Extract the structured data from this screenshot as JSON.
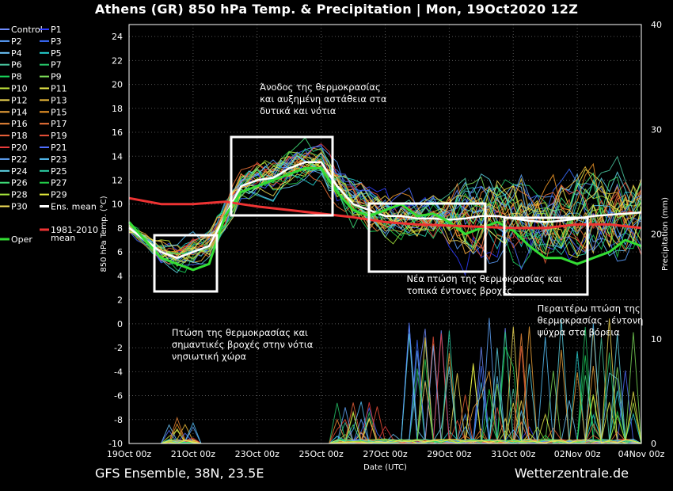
{
  "title": "Athens  (GR)  850 hPa Temp. & Precipitation | Mon, 19Oct2020 12Z",
  "footer_left": "GFS Ensemble, 38N, 23.5E",
  "footer_right": "Wetterzentrale.de",
  "chart_data": {
    "type": "line",
    "xlabel": "Date (UTC)",
    "ylabel": "850 hPa Temp. (°C)",
    "y2label": "Precipitation (mm)",
    "xlim": [
      0,
      384
    ],
    "ylim": [
      -10,
      25
    ],
    "y2lim": [
      0,
      40
    ],
    "x_tick_labels": [
      "19Oct 00z",
      "21Oct 00z",
      "23Oct 00z",
      "25Oct 00z",
      "27Oct 00z",
      "29Oct 00z",
      "31Oct 00z",
      "02Nov 00z",
      "04Nov 00z"
    ],
    "x_tick_hours": [
      0,
      48,
      96,
      144,
      192,
      240,
      288,
      336,
      384
    ],
    "y_ticks": [
      -10,
      -8,
      -6,
      -4,
      -2,
      0,
      2,
      4,
      6,
      8,
      10,
      12,
      14,
      16,
      18,
      20,
      22,
      24
    ],
    "y2_ticks": [
      0,
      10,
      20,
      30,
      40
    ],
    "grid": true,
    "legend": {
      "placement": "left-outside",
      "entries": [
        {
          "name": "Control",
          "color": "#6f8cff"
        },
        {
          "name": "P1",
          "color": "#2f3cff"
        },
        {
          "name": "P2",
          "color": "#5aa0ff"
        },
        {
          "name": "P3",
          "color": "#3a6cff"
        },
        {
          "name": "P4",
          "color": "#6ec8ff"
        },
        {
          "name": "P5",
          "color": "#25d2d2"
        },
        {
          "name": "P6",
          "color": "#49c7a0"
        },
        {
          "name": "P7",
          "color": "#26c86a"
        },
        {
          "name": "P8",
          "color": "#19d65a"
        },
        {
          "name": "P9",
          "color": "#7ee05a"
        },
        {
          "name": "P10",
          "color": "#c8ec3c"
        },
        {
          "name": "P11",
          "color": "#f0f04a"
        },
        {
          "name": "P12",
          "color": "#f6dd55"
        },
        {
          "name": "P13",
          "color": "#f3c03c"
        },
        {
          "name": "P14",
          "color": "#f4a83c"
        },
        {
          "name": "P15",
          "color": "#f59a28"
        },
        {
          "name": "P16",
          "color": "#f08a3a"
        },
        {
          "name": "P17",
          "color": "#f2753a"
        },
        {
          "name": "P18",
          "color": "#ef623a"
        },
        {
          "name": "P19",
          "color": "#ec5038"
        },
        {
          "name": "P20",
          "color": "#e83b3b"
        },
        {
          "name": "P21",
          "color": "#4f6eff"
        },
        {
          "name": "P22",
          "color": "#62a8ff"
        },
        {
          "name": "P23",
          "color": "#58c6ff"
        },
        {
          "name": "P24",
          "color": "#5fd7e8"
        },
        {
          "name": "P25",
          "color": "#2ed2a8"
        },
        {
          "name": "P26",
          "color": "#3fe07a"
        },
        {
          "name": "P27",
          "color": "#22d24a"
        },
        {
          "name": "P28",
          "color": "#a6e63c"
        },
        {
          "name": "P29",
          "color": "#e3ea3c"
        },
        {
          "name": "P30",
          "color": "#f7e35a"
        },
        {
          "name": "Ens. mean",
          "color": "#ffffff"
        },
        {
          "name": "Oper",
          "color": "#33dd33"
        },
        {
          "name": "1981-2010\nmean",
          "color": "#ee3333"
        }
      ]
    },
    "series": [
      {
        "name": "Ens. mean",
        "hours": [
          0,
          12,
          24,
          36,
          48,
          60,
          72,
          84,
          96,
          108,
          120,
          132,
          144,
          156,
          168,
          180,
          192,
          204,
          216,
          228,
          240,
          252,
          264,
          276,
          288,
          300,
          312,
          324,
          336,
          348,
          360,
          372,
          384
        ],
        "values": [
          8,
          7,
          6,
          5.5,
          6,
          6.5,
          9,
          11.5,
          12,
          12.2,
          13,
          13.5,
          13.5,
          11.5,
          10,
          9.5,
          9,
          9,
          8.8,
          8.8,
          8.7,
          8.8,
          9,
          9,
          8.8,
          8.6,
          8.5,
          8.6,
          8.8,
          9,
          9.1,
          9.2,
          9.3
        ]
      },
      {
        "name": "Oper",
        "hours": [
          0,
          12,
          24,
          36,
          48,
          60,
          72,
          84,
          96,
          108,
          120,
          132,
          144,
          156,
          168,
          180,
          192,
          204,
          216,
          228,
          240,
          252,
          264,
          276,
          288,
          300,
          312,
          324,
          336,
          348,
          360,
          372,
          384
        ],
        "values": [
          8.5,
          7,
          5.5,
          5,
          4.5,
          5,
          9,
          11,
          11.5,
          12,
          12.5,
          13,
          13,
          11,
          9.5,
          9,
          9.5,
          10,
          9,
          9.2,
          8.5,
          7.5,
          8,
          8.5,
          7.8,
          6.5,
          5.5,
          5.5,
          5,
          5.5,
          6,
          7,
          6.5
        ]
      },
      {
        "name": "1981-2010\nmean",
        "hours": [
          0,
          24,
          48,
          72,
          96,
          120,
          144,
          168,
          192,
          216,
          240,
          264,
          288,
          312,
          336,
          360,
          384
        ],
        "values": [
          10.5,
          10,
          10,
          10.2,
          9.8,
          9.5,
          9.2,
          8.9,
          8.5,
          8.3,
          8.2,
          8.1,
          8,
          8,
          8.3,
          8.3,
          8
        ]
      }
    ],
    "annotations": [
      {
        "text": "Πτώση της θερμοκρασίας και\nσημαντικές βροχές στην νότια\nνησιωτική χώρα",
        "x_hours": 32,
        "y": -1
      },
      {
        "text": "Άνοδος της θερμοκρασίας\nκαι αυξημένη αστάθεια στα\nδυτικά και νότια",
        "x_hours": 98,
        "y": 19.5
      },
      {
        "text": "Νέα πτώση της θερμοκρασίας και\nτοπικά έντονες βροχές",
        "x_hours": 208,
        "y": 3.5
      },
      {
        "text": "Περαιτέρω πτώση της\nθερμοκρασίας - έντονη\nψύχρα στα βόρεια",
        "x_hours": 306,
        "y": 1
      }
    ]
  }
}
